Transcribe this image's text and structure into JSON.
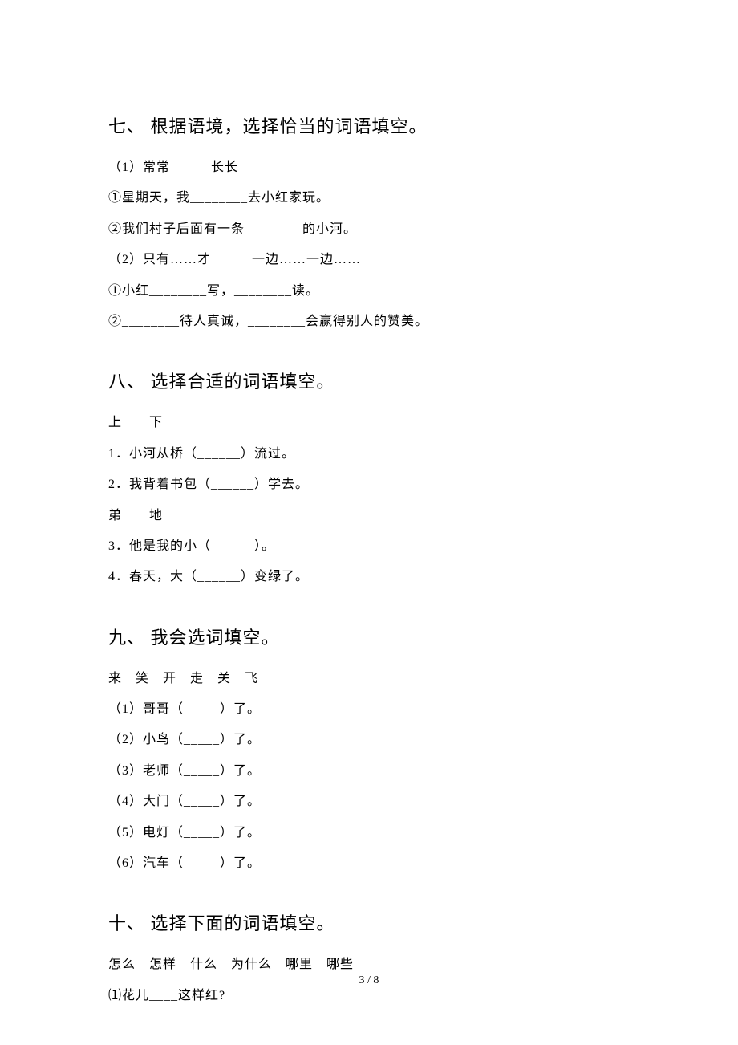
{
  "section7": {
    "title": "七、 根据语境，选择恰当的词语填空。",
    "group1_options": "（1）常常　　　长长",
    "group1_q1": "①星期天，我________去小红家玩。",
    "group1_q2": "②我们村子后面有一条________的小河。",
    "group2_options": "（2）只有……才　　　一边……一边……",
    "group2_q1": "①小红________写，________读。",
    "group2_q2": "②________待人真诚，________会赢得别人的赞美。"
  },
  "section8": {
    "title": "八、 选择合适的词语填空。",
    "bank1": "上　　下",
    "q1": "1．小河从桥（______）流过。",
    "q2": "2．我背着书包（______）学去。",
    "bank2": "弟　　地",
    "q3": "3．他是我的小（______）。",
    "q4": "4．春天，大（______）变绿了。"
  },
  "section9": {
    "title": "九、 我会选词填空。",
    "bank": "来　笑　开　走　关　飞",
    "q1": "（1）哥哥（_____）了。",
    "q2": "（2）小鸟（_____）了。",
    "q3": "（3）老师（_____）了。",
    "q4": "（4）大门（_____）了。",
    "q5": "（5）电灯（_____）了。",
    "q6": "（6）汽车（_____）了。"
  },
  "section10": {
    "title": "十、 选择下面的词语填空。",
    "bank": "怎么　怎样　什么　为什么　哪里　哪些",
    "q1": "⑴花儿____这样红?"
  },
  "footer": "3 / 8"
}
